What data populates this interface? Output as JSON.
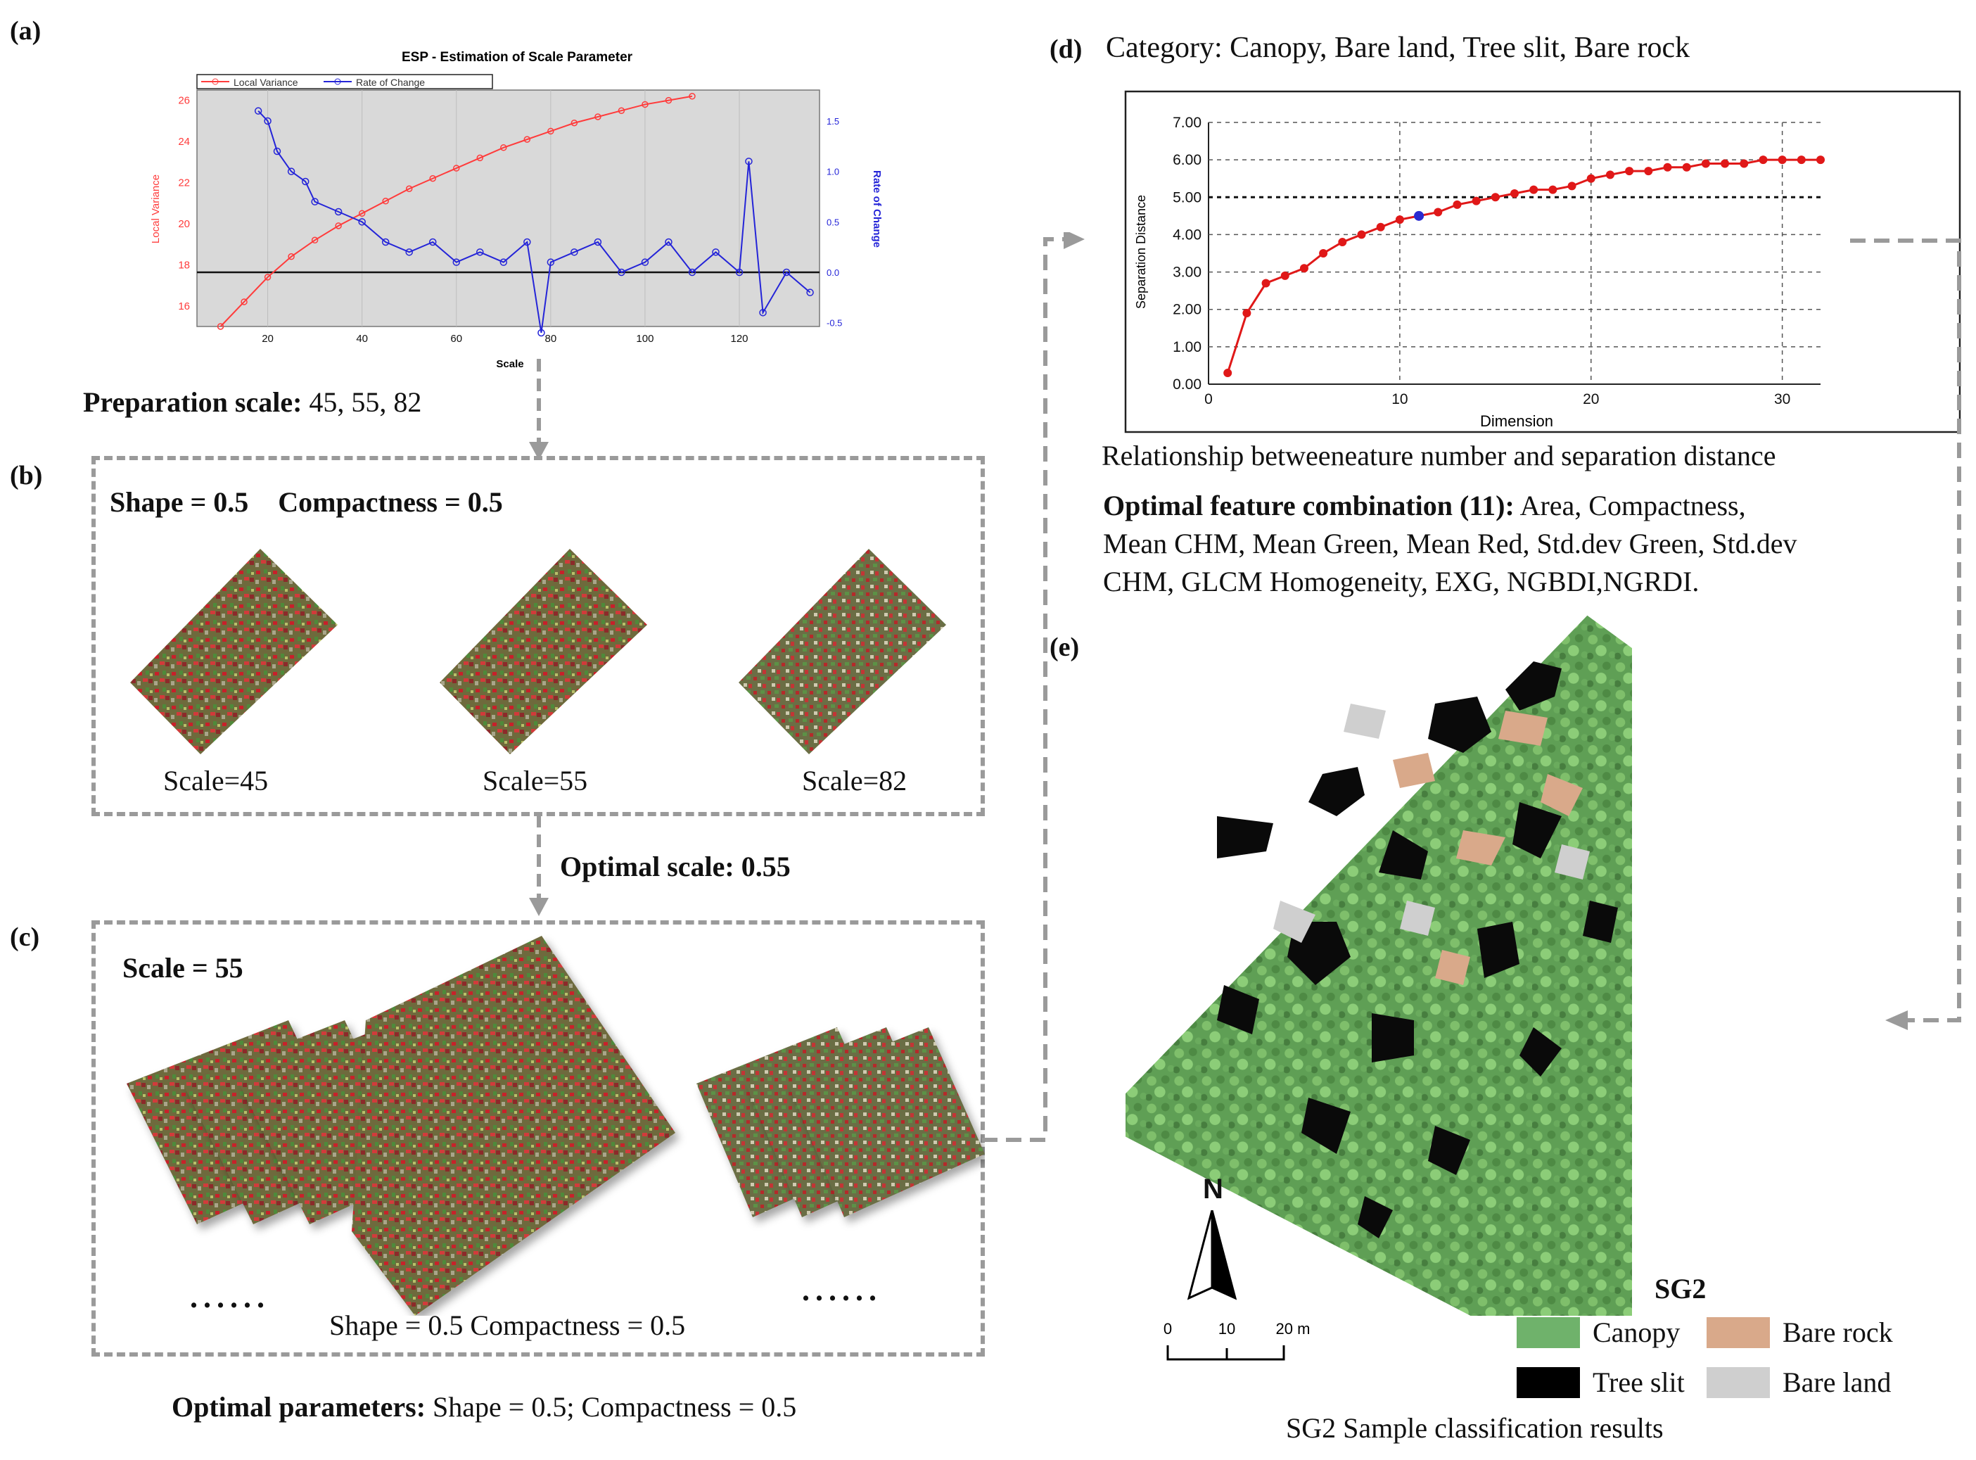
{
  "panels": {
    "a": "(a)",
    "b": "(b)",
    "c": "(c)",
    "d": "(d)",
    "e": "(e)"
  },
  "esp_chart": {
    "title": "ESP - Estimation of Scale Parameter",
    "legend_local_variance": "Local Variance",
    "legend_rate_of_change": "Rate of Change",
    "ylabel_left": "Local Variance",
    "ylabel_right": "Rate of Change",
    "xlabel": "Scale",
    "left_ticks": [
      "26",
      "24",
      "22",
      "20",
      "18",
      "16"
    ],
    "right_ticks": [
      "1.5",
      "1.0",
      "0.5",
      "0.0",
      "-0.5"
    ],
    "x_ticks": [
      "20",
      "40",
      "60",
      "80",
      "100",
      "120"
    ],
    "colors": {
      "local_variance": "#ff3b3b",
      "rate_of_change": "#2424d8"
    }
  },
  "prep": {
    "label": "Preparation scale:",
    "values": "45, 55, 82"
  },
  "box_b": {
    "shape": "Shape = 0.5",
    "compactness": "Compactness = 0.5",
    "scales": [
      "Scale=45",
      "Scale=55",
      "Scale=82"
    ]
  },
  "optimal_scale": "Optimal scale: 0.55",
  "box_c": {
    "scale": "Scale = 55",
    "dots_left": "......",
    "dots_right": "......",
    "caption": "Shape = 0.5 Compactness = 0.5"
  },
  "optimal_params": {
    "label": "Optimal parameters:",
    "values": "Shape = 0.5; Compactness = 0.5"
  },
  "category": "Category: Canopy, Bare land, Tree slit, Bare rock",
  "sep_chart": {
    "ylabel": "Separation Distance",
    "xlabel": "Dimension",
    "y_ticks": [
      "7.00",
      "6.00",
      "5.00",
      "4.00",
      "3.00",
      "2.00",
      "1.00",
      "0.00"
    ],
    "x_ticks": [
      "0",
      "10",
      "20",
      "30"
    ]
  },
  "sep_caption": "Relationship betweeneature number and separation distance",
  "optimal_features": {
    "label": "Optimal feature combination (11):",
    "line1_rest": "Area, Compactness,",
    "line2": "Mean CHM, Mean Green, Mean Red, Std.dev Green, Std.dev",
    "line3": "CHM, GLCM Homogeneity, EXG, NGBDI,NGRDI."
  },
  "map": {
    "north": "N",
    "scale_labels": [
      "0",
      "10",
      "20 m"
    ],
    "legend_title": "SG2",
    "legend": [
      {
        "label": "Canopy",
        "color": "#6fb26b"
      },
      {
        "label": "Bare rock",
        "color": "#d9a98a"
      },
      {
        "label": "Tree slit",
        "color": "#000000"
      },
      {
        "label": "Bare land",
        "color": "#cfcfcf"
      }
    ],
    "caption": "SG2 Sample classification results"
  },
  "chart_data": [
    {
      "type": "line",
      "title": "ESP - Estimation of Scale Parameter",
      "xlabel": "Scale",
      "ylabel": "Local Variance",
      "xlim": [
        5,
        137
      ],
      "ylim": [
        15,
        26.5
      ],
      "series": [
        {
          "name": "Local Variance",
          "x": [
            10,
            15,
            20,
            25,
            30,
            35,
            40,
            45,
            50,
            55,
            60,
            65,
            70,
            75,
            80,
            85,
            90,
            95,
            100,
            105,
            110
          ],
          "values": [
            15.0,
            16.2,
            17.4,
            18.4,
            19.2,
            19.9,
            20.5,
            21.1,
            21.7,
            22.2,
            22.7,
            23.2,
            23.7,
            24.1,
            24.5,
            24.9,
            25.2,
            25.5,
            25.8,
            26.0,
            26.2
          ]
        },
        {
          "name": "Rate of Change",
          "x": [
            18,
            20,
            22,
            25,
            28,
            30,
            35,
            40,
            45,
            50,
            55,
            60,
            65,
            70,
            75,
            78,
            80,
            85,
            90,
            95,
            100,
            105,
            110,
            115,
            120,
            122,
            125,
            130,
            135
          ],
          "values": [
            1.6,
            1.5,
            1.2,
            1.0,
            0.9,
            0.7,
            0.6,
            0.5,
            0.3,
            0.2,
            0.3,
            0.1,
            0.2,
            0.1,
            0.3,
            -0.6,
            0.1,
            0.2,
            0.3,
            0.0,
            0.1,
            0.3,
            0.0,
            0.2,
            0.0,
            1.1,
            -0.4,
            0.0,
            -0.2
          ]
        }
      ]
    },
    {
      "type": "line",
      "xlabel": "Dimension",
      "ylabel": "Separation Distance",
      "xlim": [
        0,
        32
      ],
      "ylim": [
        0,
        7
      ],
      "series": [
        {
          "x": [
            1,
            2,
            3,
            4,
            5,
            6,
            7,
            8,
            9,
            10,
            11,
            12,
            13,
            14,
            15,
            16,
            17,
            18,
            19,
            20,
            21,
            22,
            23,
            24,
            25,
            26,
            27,
            28,
            29,
            30,
            31,
            32
          ],
          "values": [
            0.3,
            1.9,
            2.7,
            2.9,
            3.1,
            3.5,
            3.8,
            4.0,
            4.2,
            4.4,
            4.5,
            4.6,
            4.8,
            4.9,
            5.0,
            5.1,
            5.2,
            5.2,
            5.3,
            5.5,
            5.6,
            5.7,
            5.7,
            5.8,
            5.8,
            5.9,
            5.9,
            5.9,
            6.0,
            6.0,
            6.0,
            6.0
          ]
        }
      ]
    }
  ]
}
